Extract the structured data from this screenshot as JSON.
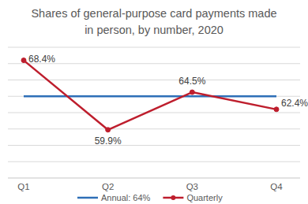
{
  "chart_data": {
    "type": "line",
    "title": "Shares of general-purpose card payments made in person, by number, 2020",
    "categories": [
      "Q1",
      "Q2",
      "Q3",
      "Q4"
    ],
    "series": [
      {
        "name": "Annual: 64%",
        "color": "#2e6fb7",
        "marker": "none",
        "values": [
          64,
          64,
          64,
          64
        ]
      },
      {
        "name": "Quarterly",
        "color": "#be1e2d",
        "marker": "circle",
        "data_labels": true,
        "values": [
          68.4,
          59.9,
          64.5,
          62.4
        ],
        "value_labels": [
          "68.4%",
          "59.9%",
          "64.5%",
          "62.4%"
        ]
      }
    ],
    "ylim": [
      54,
      70
    ],
    "yticks": [
      54,
      56,
      58,
      60,
      62,
      64,
      66,
      68,
      70
    ],
    "grid": true,
    "tick_labels": "x",
    "legend": "bottom"
  }
}
